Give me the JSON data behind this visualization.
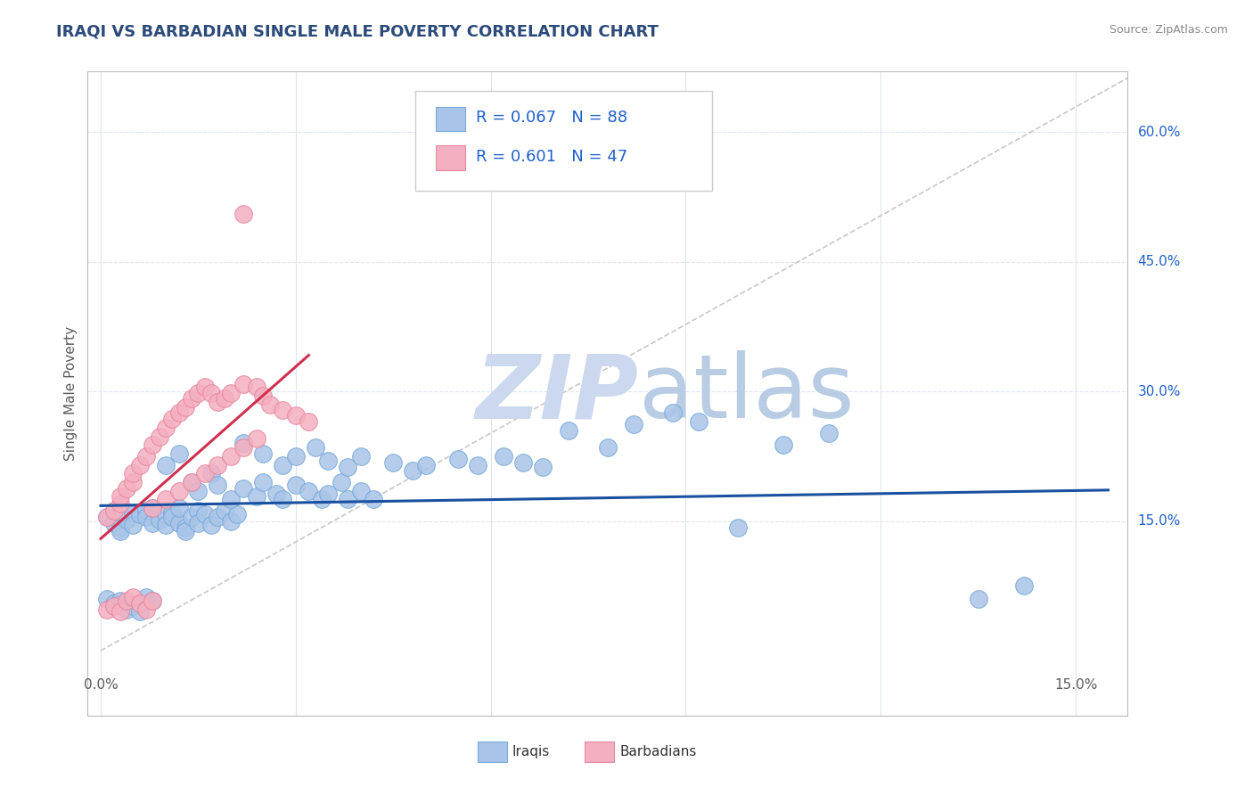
{
  "title": "IRAQI VS BARBADIAN SINGLE MALE POVERTY CORRELATION CHART",
  "source": "Source: ZipAtlas.com",
  "ylabel": "Single Male Poverty",
  "ytick_labels": [
    "15.0%",
    "30.0%",
    "45.0%",
    "60.0%"
  ],
  "ytick_values": [
    0.15,
    0.3,
    0.45,
    0.6
  ],
  "xlim": [
    -0.002,
    0.158
  ],
  "ylim": [
    -0.075,
    0.67
  ],
  "blue_R": 0.067,
  "blue_N": 88,
  "pink_R": 0.601,
  "pink_N": 47,
  "iraqis_color": "#a8c4e8",
  "iraqis_edge": "#7aaad8",
  "barbadians_color": "#f4afc0",
  "barbadians_edge": "#e888a0",
  "trend_blue": "#1a50a0",
  "trend_pink": "#d03050",
  "diag_color": "#c8c8c8",
  "background_color": "#ffffff",
  "grid_color": "#dde5f0",
  "title_color": "#2c4a7a",
  "axis_label_color": "#5a5a5a",
  "legend_text_color": "#2060cc",
  "right_label_color": "#2060cc",
  "watermark_zip_color": "#ccd8ee",
  "watermark_atlas_color": "#b8cce4"
}
